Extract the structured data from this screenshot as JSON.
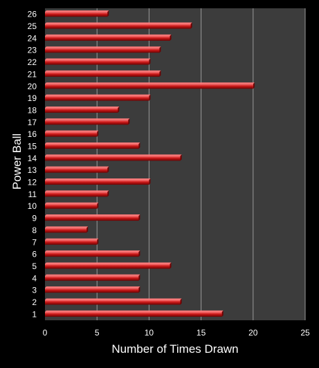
{
  "chart_data": {
    "type": "bar",
    "orientation": "horizontal",
    "xlabel": "Number of Times Drawn",
    "ylabel": "Power Ball",
    "xlim": [
      0,
      25
    ],
    "x_ticks": [
      0,
      5,
      10,
      15,
      20,
      25
    ],
    "grid": "vertical",
    "categories": [
      "1",
      "2",
      "3",
      "4",
      "5",
      "6",
      "7",
      "8",
      "9",
      "10",
      "11",
      "12",
      "13",
      "14",
      "15",
      "16",
      "17",
      "18",
      "19",
      "20",
      "21",
      "22",
      "23",
      "24",
      "25",
      "26"
    ],
    "values": [
      17,
      13,
      9,
      9,
      12,
      9,
      5,
      4,
      9,
      5,
      6,
      10,
      6,
      13,
      9,
      5,
      8,
      7,
      10,
      20,
      11,
      10,
      11,
      12,
      14,
      6
    ],
    "colors": {
      "background": "#000000",
      "plot_area": "#3c3c3c",
      "gridline": "#9a9a9a",
      "bar": "#cc1a1a",
      "bar_highlight": "#ff7a7a",
      "bar_shadow": "#6e0000",
      "text": "#ffffff"
    }
  }
}
